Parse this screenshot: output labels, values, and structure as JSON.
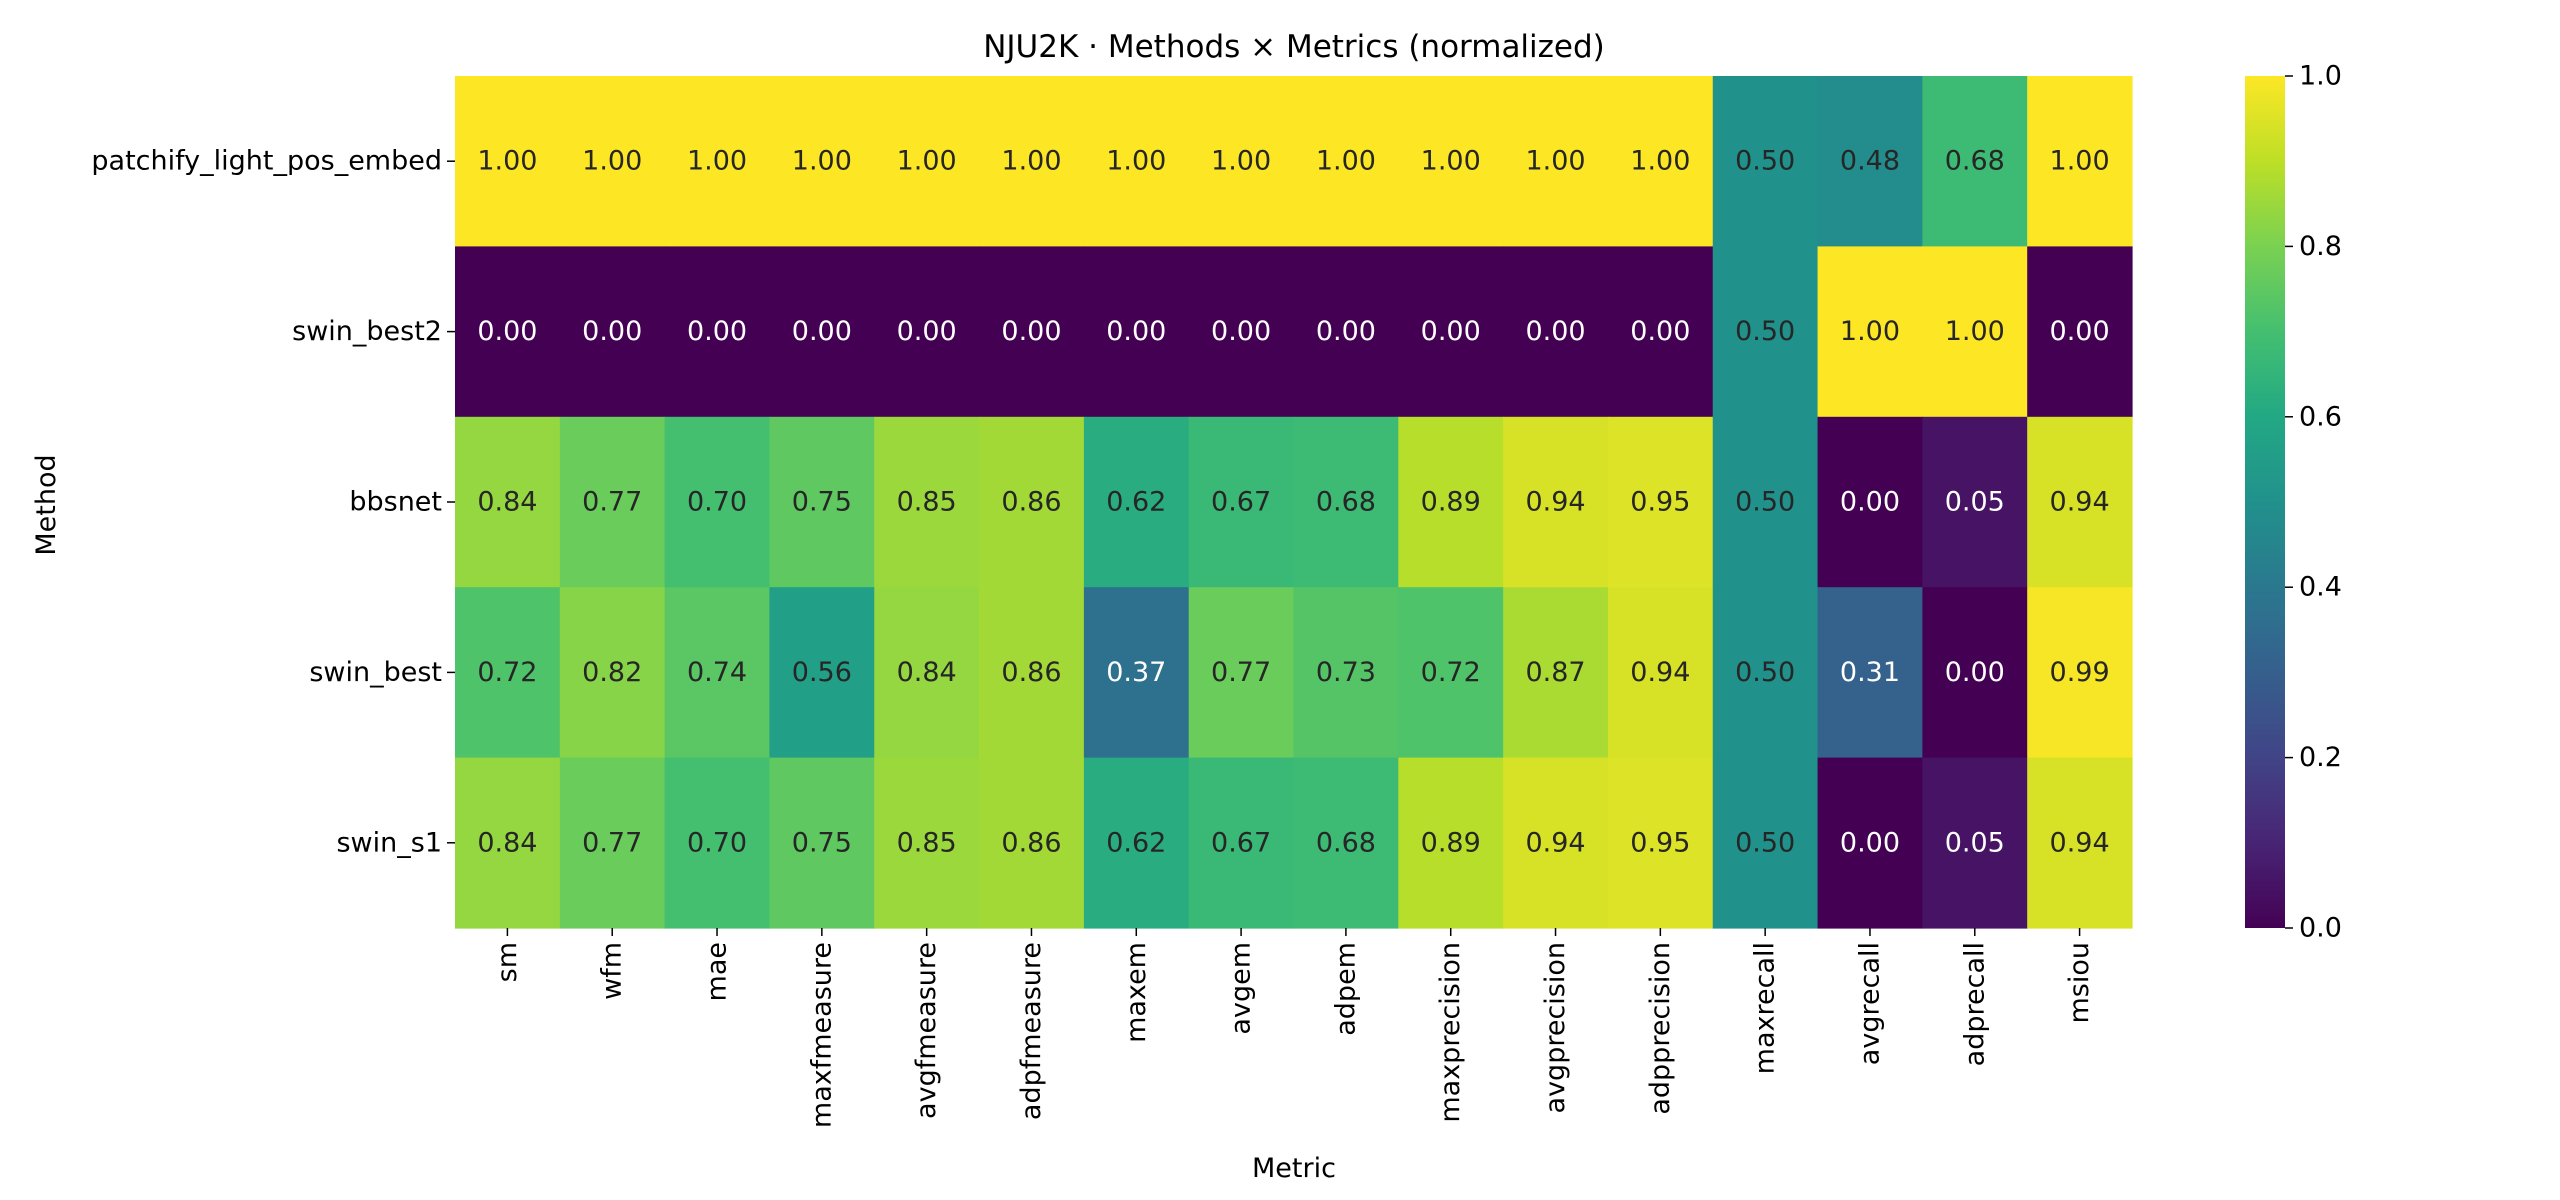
{
  "chart_data": {
    "type": "heatmap",
    "title": "NJU2K · Methods × Metrics (normalized)",
    "xlabel": "Metric",
    "ylabel": "Method",
    "columns": [
      "sm",
      "wfm",
      "mae",
      "maxfmeasure",
      "avgfmeasure",
      "adpfmeasure",
      "maxem",
      "avgem",
      "adpem",
      "maxprecision",
      "avgprecision",
      "adpprecision",
      "maxrecall",
      "avgrecall",
      "adprecall",
      "msiou"
    ],
    "rows": [
      "patchify_light_pos_embed",
      "swin_best2",
      "bbsnet",
      "swin_best",
      "swin_s1"
    ],
    "values": [
      [
        1.0,
        1.0,
        1.0,
        1.0,
        1.0,
        1.0,
        1.0,
        1.0,
        1.0,
        1.0,
        1.0,
        1.0,
        0.5,
        0.48,
        0.68,
        1.0
      ],
      [
        0.0,
        0.0,
        0.0,
        0.0,
        0.0,
        0.0,
        0.0,
        0.0,
        0.0,
        0.0,
        0.0,
        0.0,
        0.5,
        1.0,
        1.0,
        0.0
      ],
      [
        0.84,
        0.77,
        0.7,
        0.75,
        0.85,
        0.86,
        0.62,
        0.67,
        0.68,
        0.89,
        0.94,
        0.95,
        0.5,
        0.0,
        0.05,
        0.94
      ],
      [
        0.72,
        0.82,
        0.74,
        0.56,
        0.84,
        0.86,
        0.37,
        0.77,
        0.73,
        0.72,
        0.87,
        0.94,
        0.5,
        0.31,
        0.0,
        0.99
      ],
      [
        0.84,
        0.77,
        0.7,
        0.75,
        0.85,
        0.86,
        0.62,
        0.67,
        0.68,
        0.89,
        0.94,
        0.95,
        0.5,
        0.0,
        0.05,
        0.94
      ]
    ],
    "value_format": "2 decimals",
    "colormap": "viridis",
    "vmin": 0.0,
    "vmax": 1.0,
    "colorbar_ticks": [
      "0.0",
      "0.2",
      "0.4",
      "0.6",
      "0.8",
      "1.0"
    ],
    "colorbar_tick_values": [
      0.0,
      0.2,
      0.4,
      0.6,
      0.8,
      1.0
    ],
    "colorbar_placement": "right",
    "grid": false
  }
}
